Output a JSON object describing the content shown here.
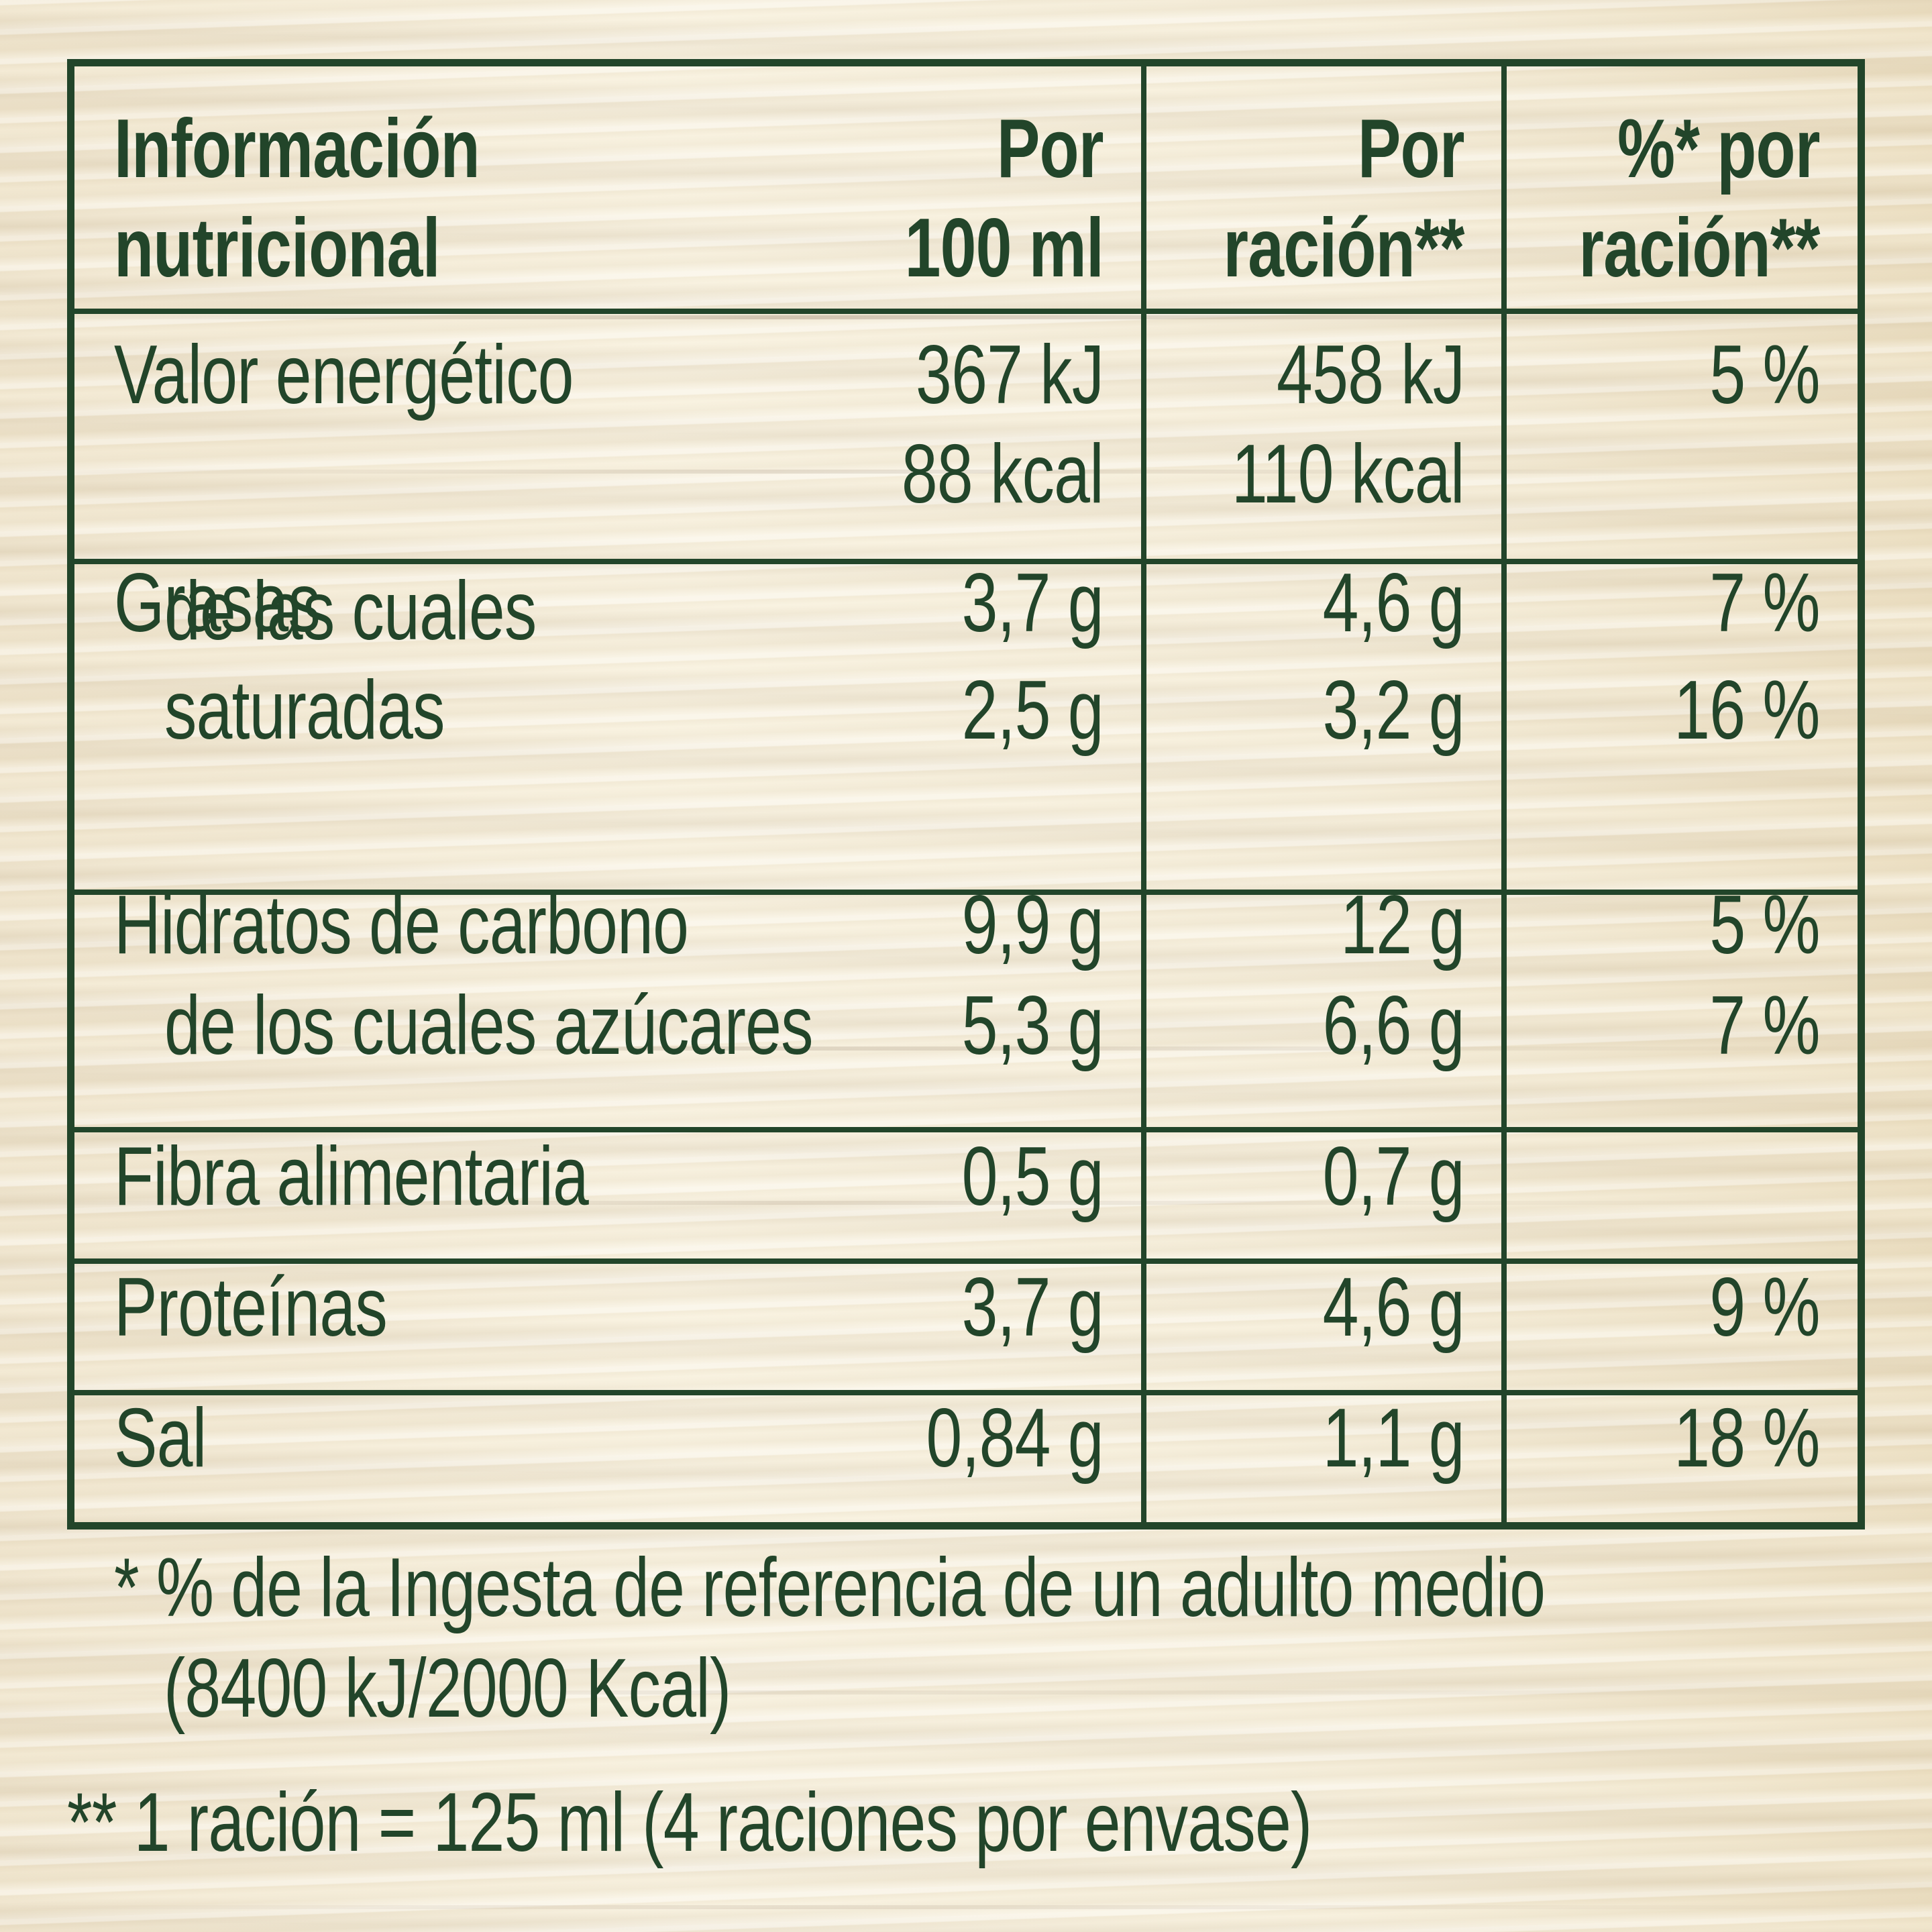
{
  "table": {
    "header": {
      "nutrient": [
        "Información",
        "nutricional"
      ],
      "per100": [
        "Por",
        "100 ml"
      ],
      "perServing": [
        "Por",
        "ración**"
      ],
      "pctServing": [
        "%* por",
        "ración**"
      ]
    },
    "rows": [
      {
        "name": [
          "Valor energético"
        ],
        "per100": [
          "367 kJ",
          "88 kcal"
        ],
        "perServing": [
          "458 kJ",
          "110 kcal"
        ],
        "pct": [
          "5 %"
        ]
      },
      {
        "name": [
          "Grasas"
        ],
        "per100": [
          "3,7 g"
        ],
        "perServing": [
          "4,6 g"
        ],
        "pct": [
          "7 %"
        ]
      },
      {
        "name": [
          "de las cuales",
          "saturadas"
        ],
        "per100": [
          "2,5 g"
        ],
        "perServing": [
          "3,2 g"
        ],
        "pct": [
          "16 %"
        ]
      },
      {
        "name": [
          "Hidratos de carbono"
        ],
        "per100": [
          "9,9 g"
        ],
        "perServing": [
          "12 g"
        ],
        "pct": [
          "5 %"
        ]
      },
      {
        "name": [
          "de los cuales azúcares"
        ],
        "per100": [
          "5,3 g"
        ],
        "perServing": [
          "6,6 g"
        ],
        "pct": [
          "7 %"
        ]
      },
      {
        "name": [
          "Fibra alimentaria"
        ],
        "per100": [
          "0,5 g"
        ],
        "perServing": [
          "0,7 g"
        ],
        "pct": [
          ""
        ]
      },
      {
        "name": [
          "Proteínas"
        ],
        "per100": [
          "3,7 g"
        ],
        "perServing": [
          "4,6 g"
        ],
        "pct": [
          "9 %"
        ]
      },
      {
        "name": [
          "Sal"
        ],
        "per100": [
          "0,84 g"
        ],
        "perServing": [
          "1,1 g"
        ],
        "pct": [
          "18 %"
        ]
      }
    ]
  },
  "footnotes": {
    "star1_mark": "*",
    "star1_line1": "% de la Ingesta de referencia de un adulto medio",
    "star1_line2": "(8400 kJ/2000 Kcal)",
    "star2": "** 1 ración = 125 ml (4 raciones por envase)"
  },
  "colors": {
    "ink": "#22452a",
    "background": "#f1e8d3"
  }
}
